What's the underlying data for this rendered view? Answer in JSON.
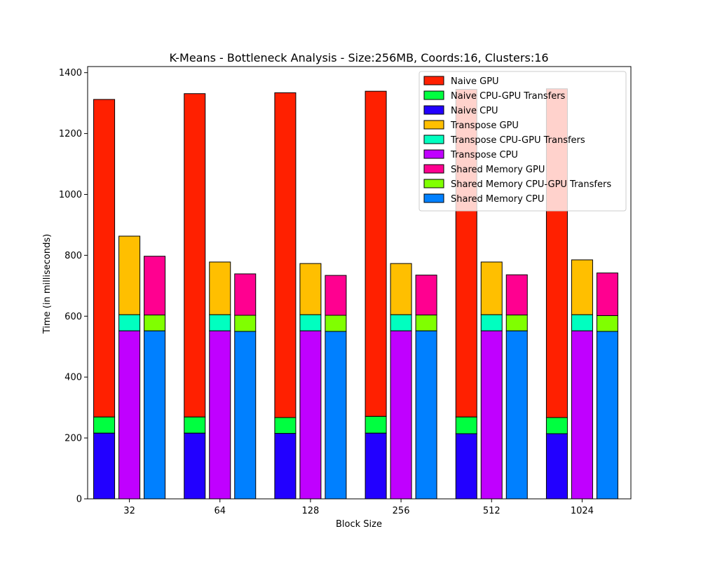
{
  "chart_data": {
    "type": "bar",
    "stacked": true,
    "title": "K-Means - Bottleneck Analysis - Size:256MB, Coords:16, Clusters:16",
    "xlabel": "Block Size",
    "ylabel": "Time (in milliseconds)",
    "categories": [
      "32",
      "64",
      "128",
      "256",
      "512",
      "1024"
    ],
    "ylim": [
      0,
      1420
    ],
    "yticks": [
      0,
      200,
      400,
      600,
      800,
      1000,
      1200,
      1400
    ],
    "grid": false,
    "legend_position": "top-right",
    "groups": [
      {
        "name": "Naive",
        "segments": [
          {
            "name": "Naive CPU",
            "color": "#2200ff",
            "values": [
              216,
              216,
              215,
              216,
              214,
              214
            ]
          },
          {
            "name": "Naive CPU-GPU Transfers",
            "color": "#00ff40",
            "values": [
              53,
              53,
              52,
              55,
              55,
              53
            ]
          },
          {
            "name": "Naive GPU",
            "color": "#ff2000",
            "values": [
              1043,
              1062,
              1067,
              1068,
              1076,
              1080
            ]
          }
        ]
      },
      {
        "name": "Transpose",
        "segments": [
          {
            "name": "Transpose CPU",
            "color": "#c000ff",
            "values": [
              552,
              552,
              552,
              552,
              552,
              552
            ]
          },
          {
            "name": "Transpose CPU-GPU Transfers",
            "color": "#00ffc0",
            "values": [
              53,
              53,
              53,
              53,
              53,
              53
            ]
          },
          {
            "name": "Transpose GPU",
            "color": "#ffbf00",
            "values": [
              258,
              173,
              168,
              168,
              173,
              180
            ]
          }
        ]
      },
      {
        "name": "Shared Memory",
        "segments": [
          {
            "name": "Shared Memory CPU",
            "color": "#0080ff",
            "values": [
              552,
              550,
              550,
              552,
              552,
              550
            ]
          },
          {
            "name": "Shared Memory CPU-GPU Transfers",
            "color": "#80ff00",
            "values": [
              52,
              53,
              53,
              52,
              52,
              52
            ]
          },
          {
            "name": "Shared Memory GPU",
            "color": "#ff0090",
            "values": [
              193,
              136,
              131,
              131,
              132,
              140
            ]
          }
        ]
      }
    ],
    "legend": [
      {
        "label": "Naive GPU",
        "color": "#ff2000"
      },
      {
        "label": "Naive CPU-GPU Transfers",
        "color": "#00ff40"
      },
      {
        "label": "Naive CPU",
        "color": "#2200ff"
      },
      {
        "label": "Transpose GPU",
        "color": "#ffbf00"
      },
      {
        "label": "Transpose CPU-GPU Transfers",
        "color": "#00ffc0"
      },
      {
        "label": "Transpose CPU",
        "color": "#c000ff"
      },
      {
        "label": "Shared Memory GPU",
        "color": "#ff0090"
      },
      {
        "label": "Shared Memory CPU-GPU Transfers",
        "color": "#80ff00"
      },
      {
        "label": "Shared Memory CPU",
        "color": "#0080ff"
      }
    ]
  }
}
